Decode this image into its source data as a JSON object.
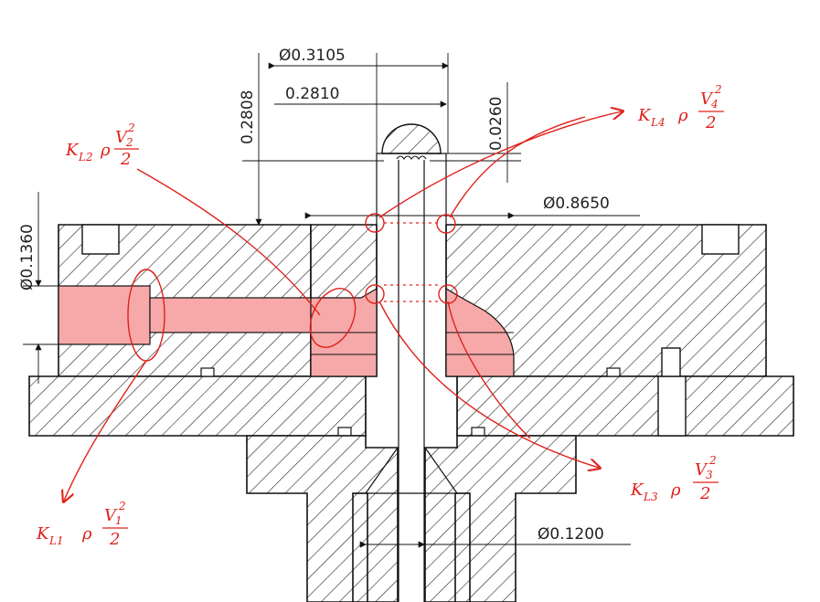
{
  "dimensions": {
    "d_top": "Ø0.3105",
    "d_inner": "0.2810",
    "h_left": "0.2808",
    "h_right": "0.0260",
    "d_mid": "Ø0.8650",
    "d_side": "Ø0.1360",
    "d_bottom": "Ø0.1200"
  },
  "annotations": {
    "kl1": {
      "k": "K",
      "sub": "L1",
      "rho": "ρ",
      "num": "V",
      "num_sub": "1",
      "exp": "2",
      "den": "2"
    },
    "kl2": {
      "k": "K",
      "sub": "L2",
      "rho": "ρ",
      "num": "V",
      "num_sub": "2",
      "exp": "2",
      "den": "2"
    },
    "kl3": {
      "k": "K",
      "sub": "L3",
      "rho": "ρ",
      "num": "V",
      "num_sub": "3",
      "exp": "2",
      "den": "2"
    },
    "kl4": {
      "k": "K",
      "sub": "L4",
      "rho": "ρ",
      "num": "V",
      "num_sub": "4",
      "exp": "2",
      "den": "2"
    }
  },
  "colors": {
    "annotation": "#e0201a",
    "flow_fill": "#f7a9a9",
    "line": "#111111"
  }
}
